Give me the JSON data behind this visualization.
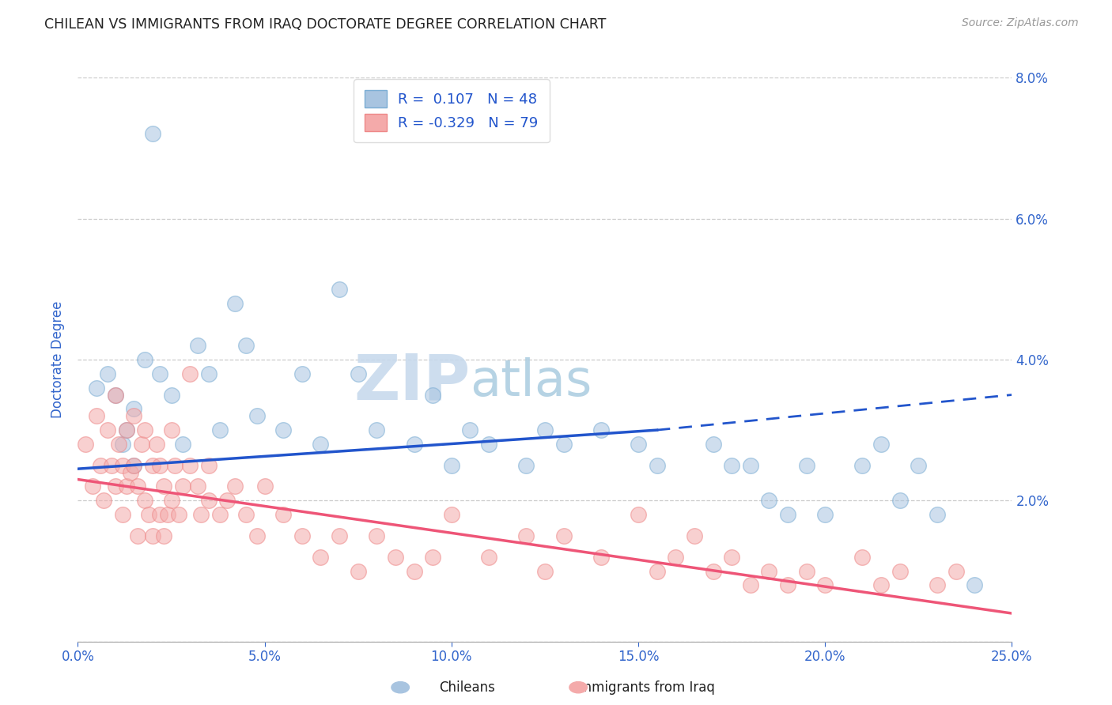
{
  "title": "CHILEAN VS IMMIGRANTS FROM IRAQ DOCTORATE DEGREE CORRELATION CHART",
  "source": "Source: ZipAtlas.com",
  "ylabel": "Doctorate Degree",
  "x_min": 0.0,
  "x_max": 0.25,
  "y_min": 0.0,
  "y_max": 0.08,
  "x_ticks": [
    0.0,
    0.05,
    0.1,
    0.15,
    0.2,
    0.25
  ],
  "y_ticks": [
    0.0,
    0.02,
    0.04,
    0.06,
    0.08
  ],
  "y_tick_labels_right": [
    "",
    "2.0%",
    "4.0%",
    "6.0%",
    "8.0%"
  ],
  "x_tick_labels_bottom": [
    "0.0%",
    "5.0%",
    "10.0%",
    "15.0%",
    "20.0%",
    "25.0%"
  ],
  "blue_fill_color": "#A8C4E0",
  "blue_edge_color": "#7AADD4",
  "pink_fill_color": "#F4AAAA",
  "pink_edge_color": "#EE8888",
  "blue_line_color": "#2255CC",
  "pink_line_color": "#EE5577",
  "R_blue": 0.107,
  "N_blue": 48,
  "R_pink": -0.329,
  "N_pink": 79,
  "legend_label_blue": "Chileans",
  "legend_label_pink": "Immigrants from Iraq",
  "blue_line_solid_end": 0.155,
  "blue_line_x_start": 0.0,
  "blue_line_y_start": 0.0245,
  "blue_line_y_at_solid_end": 0.03,
  "blue_line_y_end": 0.035,
  "pink_line_x_start": 0.0,
  "pink_line_y_start": 0.023,
  "pink_line_x_end": 0.25,
  "pink_line_y_end": 0.004,
  "blue_scatter_x": [
    0.02,
    0.005,
    0.01,
    0.015,
    0.018,
    0.008,
    0.012,
    0.013,
    0.015,
    0.022,
    0.025,
    0.028,
    0.032,
    0.035,
    0.038,
    0.042,
    0.045,
    0.048,
    0.055,
    0.06,
    0.065,
    0.07,
    0.075,
    0.08,
    0.09,
    0.095,
    0.1,
    0.105,
    0.11,
    0.12,
    0.125,
    0.13,
    0.14,
    0.15,
    0.155,
    0.17,
    0.175,
    0.18,
    0.185,
    0.19,
    0.195,
    0.2,
    0.21,
    0.215,
    0.22,
    0.225,
    0.23,
    0.24
  ],
  "blue_scatter_y": [
    0.072,
    0.036,
    0.035,
    0.033,
    0.04,
    0.038,
    0.028,
    0.03,
    0.025,
    0.038,
    0.035,
    0.028,
    0.042,
    0.038,
    0.03,
    0.048,
    0.042,
    0.032,
    0.03,
    0.038,
    0.028,
    0.05,
    0.038,
    0.03,
    0.028,
    0.035,
    0.025,
    0.03,
    0.028,
    0.025,
    0.03,
    0.028,
    0.03,
    0.028,
    0.025,
    0.028,
    0.025,
    0.025,
    0.02,
    0.018,
    0.025,
    0.018,
    0.025,
    0.028,
    0.02,
    0.025,
    0.018,
    0.008
  ],
  "pink_scatter_x": [
    0.002,
    0.004,
    0.005,
    0.006,
    0.007,
    0.008,
    0.009,
    0.01,
    0.01,
    0.011,
    0.012,
    0.012,
    0.013,
    0.013,
    0.014,
    0.015,
    0.015,
    0.016,
    0.016,
    0.017,
    0.018,
    0.018,
    0.019,
    0.02,
    0.02,
    0.021,
    0.022,
    0.022,
    0.023,
    0.023,
    0.024,
    0.025,
    0.025,
    0.026,
    0.027,
    0.028,
    0.03,
    0.03,
    0.032,
    0.033,
    0.035,
    0.035,
    0.038,
    0.04,
    0.042,
    0.045,
    0.048,
    0.05,
    0.055,
    0.06,
    0.065,
    0.07,
    0.075,
    0.08,
    0.085,
    0.09,
    0.095,
    0.1,
    0.11,
    0.12,
    0.125,
    0.13,
    0.14,
    0.15,
    0.155,
    0.16,
    0.165,
    0.17,
    0.175,
    0.18,
    0.185,
    0.19,
    0.195,
    0.2,
    0.21,
    0.215,
    0.22,
    0.23,
    0.235
  ],
  "pink_scatter_y": [
    0.028,
    0.022,
    0.032,
    0.025,
    0.02,
    0.03,
    0.025,
    0.035,
    0.022,
    0.028,
    0.025,
    0.018,
    0.03,
    0.022,
    0.024,
    0.032,
    0.025,
    0.022,
    0.015,
    0.028,
    0.03,
    0.02,
    0.018,
    0.025,
    0.015,
    0.028,
    0.025,
    0.018,
    0.022,
    0.015,
    0.018,
    0.03,
    0.02,
    0.025,
    0.018,
    0.022,
    0.038,
    0.025,
    0.022,
    0.018,
    0.025,
    0.02,
    0.018,
    0.02,
    0.022,
    0.018,
    0.015,
    0.022,
    0.018,
    0.015,
    0.012,
    0.015,
    0.01,
    0.015,
    0.012,
    0.01,
    0.012,
    0.018,
    0.012,
    0.015,
    0.01,
    0.015,
    0.012,
    0.018,
    0.01,
    0.012,
    0.015,
    0.01,
    0.012,
    0.008,
    0.01,
    0.008,
    0.01,
    0.008,
    0.012,
    0.008,
    0.01,
    0.008,
    0.01
  ],
  "watermark_zip": "ZIP",
  "watermark_atlas": "atlas",
  "watermark_color_zip": "#C5D8EC",
  "watermark_color_atlas": "#AACCE0",
  "background_color": "#FFFFFF",
  "grid_color": "#CCCCCC",
  "title_color": "#222222",
  "tick_color": "#3366CC",
  "ylabel_color": "#3366CC"
}
